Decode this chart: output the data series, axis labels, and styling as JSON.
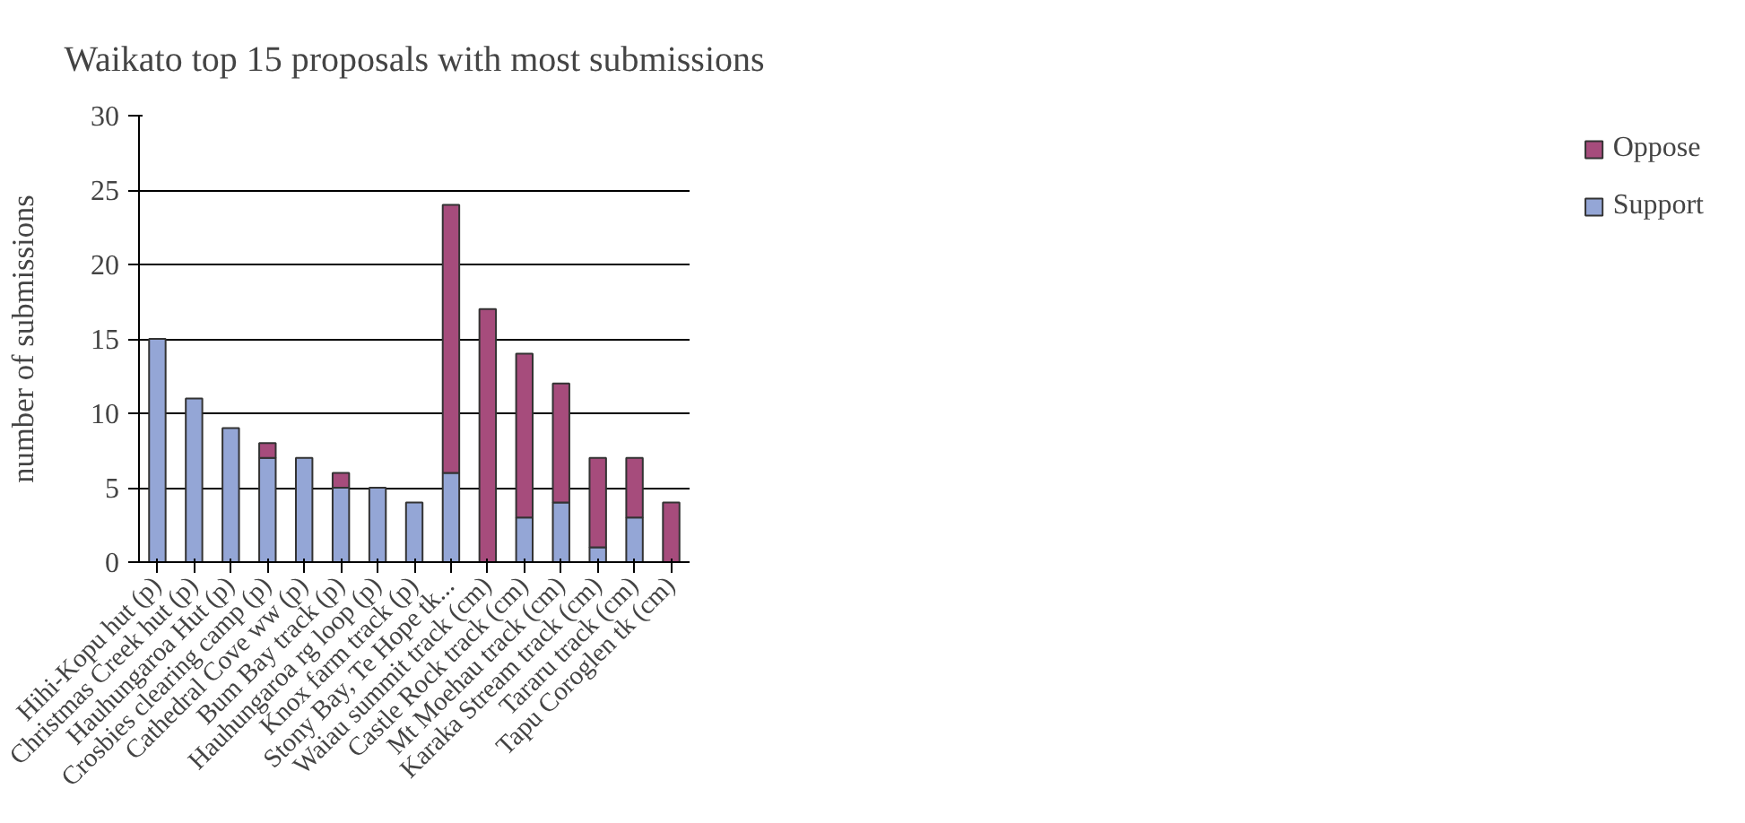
{
  "chart_data": {
    "type": "bar",
    "stacked": true,
    "title": "Waikato top 15 proposals with most submissions",
    "ylabel": "number of submissions",
    "categories": [
      "Hihi-Kopu hut (p)",
      "Christmas Creek hut (p)",
      "Hauhungaroa Hut (p)",
      "Crosbies clearing camp (p)",
      "Cathedral Cove ww (p)",
      "Bum Bay track (p)",
      "Hauhungaroa rg loop (p)",
      "Knox farm track (p)",
      "Stony Bay, Te Hope tk...",
      "Waiau summit track (cm)",
      "Castle Rock track (cm)",
      "Mt Moehau track (cm)",
      "Karaka Stream track (cm)",
      "Tararu track (cm)",
      "Tapu Coroglen tk (cm)"
    ],
    "series": [
      {
        "name": "Support",
        "color": "#94a6d6",
        "values": [
          15,
          11,
          9,
          7,
          7,
          5,
          5,
          4,
          6,
          0,
          3,
          4,
          1,
          3,
          0
        ]
      },
      {
        "name": "Oppose",
        "color": "#a64c7c",
        "values": [
          0,
          0,
          0,
          1,
          0,
          1,
          0,
          0,
          18,
          17,
          11,
          8,
          6,
          4,
          4
        ]
      }
    ],
    "ylim": [
      0,
      30
    ],
    "yticks": [
      0,
      5,
      10,
      15,
      20,
      25,
      30
    ],
    "grid": "y",
    "legend": "right"
  }
}
